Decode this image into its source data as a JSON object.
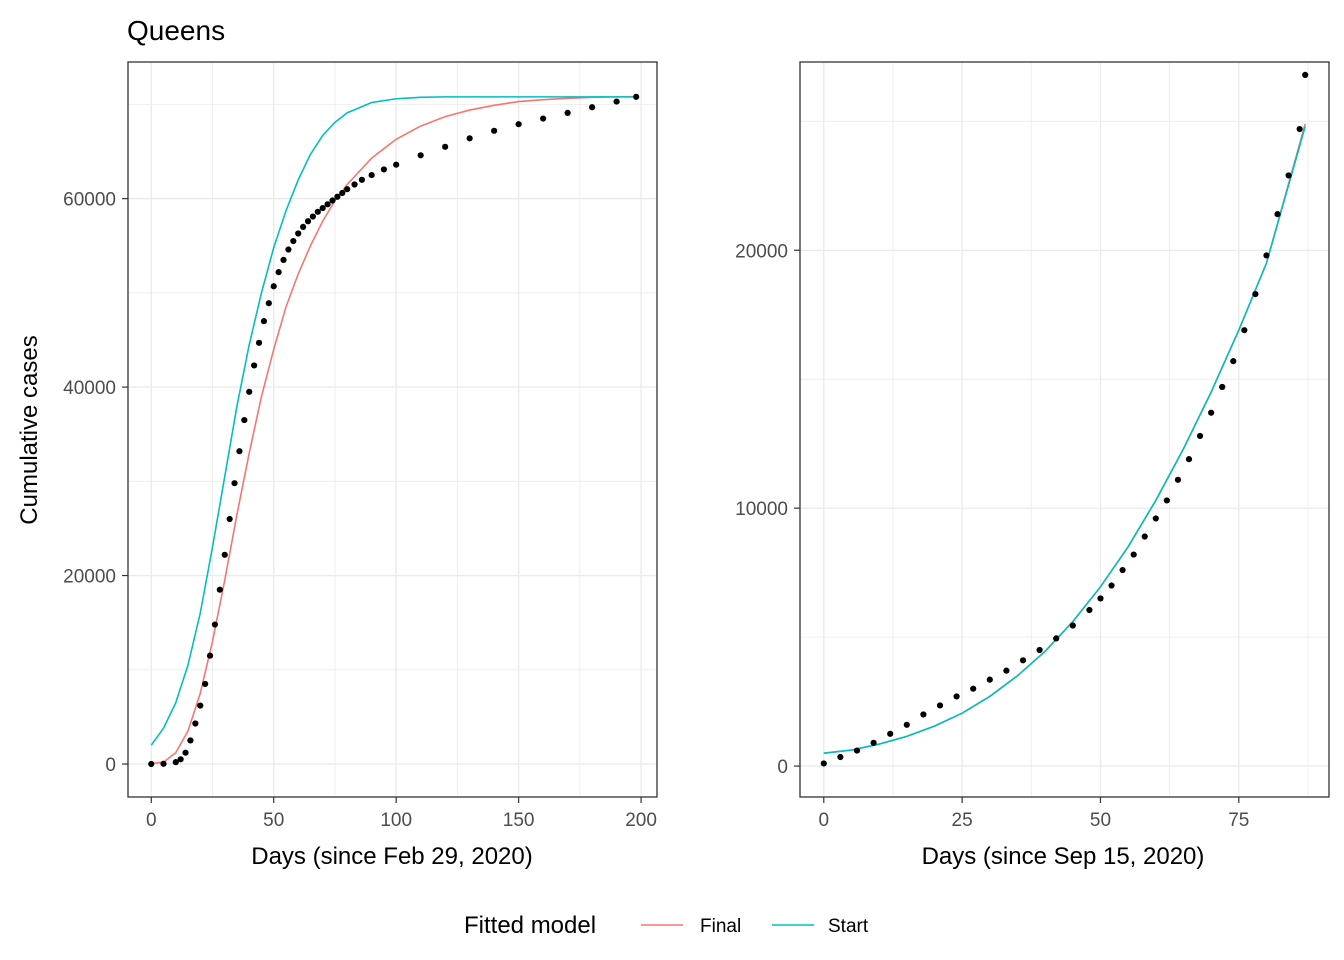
{
  "title": "Queens",
  "colors": {
    "final": "#F8766D",
    "start": "#00BFC4",
    "observed": "#000000",
    "grid": "#EBEBEB",
    "border": "#333333"
  },
  "legend": {
    "title": "Fitted model",
    "items": [
      {
        "label": "Final",
        "color": "#F8766D"
      },
      {
        "label": "Start",
        "color": "#00BFC4"
      }
    ],
    "position": "bottom"
  },
  "chart_data": [
    {
      "type": "line",
      "xlabel": "Days (since Feb 29, 2020)",
      "ylabel": "Cumulative cases",
      "xlim": [
        -9.5,
        206.5
      ],
      "ylim": [
        -3500,
        74500
      ],
      "xticks": [
        0,
        50,
        100,
        150,
        200
      ],
      "xtick_labels": [
        "0",
        "50",
        "100",
        "150",
        "200"
      ],
      "yticks": [
        0,
        20000,
        40000,
        60000
      ],
      "ytick_labels": [
        "0",
        "20000",
        "40000",
        "60000"
      ],
      "grid": true,
      "observed": {
        "marker": "points",
        "x": [
          0,
          5,
          10,
          12,
          14,
          16,
          18,
          20,
          22,
          24,
          26,
          28,
          30,
          32,
          34,
          36,
          38,
          40,
          42,
          44,
          46,
          48,
          50,
          52,
          54,
          56,
          58,
          60,
          62,
          64,
          66,
          68,
          70,
          72,
          74,
          76,
          78,
          80,
          83,
          86,
          90,
          95,
          100,
          110,
          120,
          130,
          140,
          150,
          160,
          170,
          180,
          190,
          198
        ],
        "y": [
          0,
          20,
          200,
          500,
          1200,
          2500,
          4300,
          6200,
          8500,
          11500,
          14800,
          18500,
          22200,
          26000,
          29800,
          33200,
          36500,
          39500,
          42300,
          44700,
          47000,
          48900,
          50700,
          52200,
          53500,
          54600,
          55500,
          56300,
          57000,
          57600,
          58100,
          58600,
          59000,
          59400,
          59800,
          60200,
          60600,
          61000,
          61500,
          62000,
          62500,
          63100,
          63600,
          64600,
          65500,
          66400,
          67200,
          67900,
          68500,
          69100,
          69700,
          70300,
          70800
        ]
      },
      "series": [
        {
          "name": "Final",
          "x": [
            0,
            5,
            10,
            15,
            20,
            25,
            30,
            35,
            40,
            45,
            50,
            55,
            60,
            65,
            70,
            75,
            80,
            90,
            100,
            110,
            120,
            130,
            140,
            150,
            160,
            170,
            180,
            190,
            198
          ],
          "y": [
            50,
            200,
            1200,
            3500,
            7500,
            13000,
            19500,
            26500,
            33000,
            39000,
            44000,
            48500,
            52000,
            55000,
            57600,
            59800,
            61500,
            64300,
            66300,
            67700,
            68700,
            69400,
            69900,
            70300,
            70500,
            70650,
            70750,
            70800,
            70800
          ]
        },
        {
          "name": "Start",
          "x": [
            0,
            5,
            10,
            15,
            20,
            25,
            30,
            35,
            40,
            45,
            50,
            55,
            60,
            65,
            70,
            75,
            80,
            90,
            100,
            110,
            120,
            130,
            140,
            150,
            160,
            170,
            180,
            190,
            198
          ],
          "y": [
            2000,
            3800,
            6500,
            10500,
            16000,
            23000,
            30500,
            38000,
            44500,
            50000,
            54800,
            58700,
            62000,
            64700,
            66700,
            68100,
            69100,
            70200,
            70600,
            70750,
            70800,
            70800,
            70800,
            70800,
            70800,
            70800,
            70800,
            70800,
            70800
          ]
        }
      ]
    },
    {
      "type": "line",
      "xlabel": "Days (since Sep 15, 2020)",
      "ylabel": "",
      "xlim": [
        -4.3,
        91.3
      ],
      "ylim": [
        -1200,
        27300
      ],
      "xticks": [
        0,
        25,
        50,
        75
      ],
      "xtick_labels": [
        "0",
        "25",
        "50",
        "75"
      ],
      "yticks": [
        0,
        10000,
        20000
      ],
      "ytick_labels": [
        "0",
        "10000",
        "20000"
      ],
      "grid": true,
      "observed": {
        "marker": "points",
        "x": [
          0,
          3,
          6,
          9,
          12,
          15,
          18,
          21,
          24,
          27,
          30,
          33,
          36,
          39,
          42,
          45,
          48,
          50,
          52,
          54,
          56,
          58,
          60,
          62,
          64,
          66,
          68,
          70,
          72,
          74,
          76,
          78,
          80,
          82,
          84,
          86,
          87
        ],
        "y": [
          100,
          350,
          600,
          900,
          1250,
          1600,
          2000,
          2350,
          2700,
          3000,
          3350,
          3700,
          4100,
          4500,
          4950,
          5450,
          6050,
          6500,
          7000,
          7600,
          8200,
          8900,
          9600,
          10300,
          11100,
          11900,
          12800,
          13700,
          14700,
          15700,
          16900,
          18300,
          19800,
          21400,
          22900,
          24700,
          26800
        ]
      },
      "series": [
        {
          "name": "Final",
          "x": [
            0,
            5,
            10,
            15,
            20,
            25,
            30,
            35,
            40,
            45,
            50,
            55,
            60,
            65,
            70,
            75,
            80,
            87
          ],
          "y": [
            500,
            620,
            850,
            1150,
            1550,
            2050,
            2700,
            3500,
            4450,
            5600,
            6950,
            8500,
            10300,
            12300,
            14500,
            16900,
            19500,
            24900
          ]
        },
        {
          "name": "Start",
          "x": [
            0,
            5,
            10,
            15,
            20,
            25,
            30,
            35,
            40,
            45,
            50,
            55,
            60,
            65,
            70,
            75,
            80,
            87
          ],
          "y": [
            500,
            620,
            850,
            1150,
            1550,
            2050,
            2700,
            3500,
            4450,
            5600,
            6950,
            8500,
            10300,
            12300,
            14500,
            16900,
            19500,
            24800
          ]
        }
      ]
    }
  ]
}
